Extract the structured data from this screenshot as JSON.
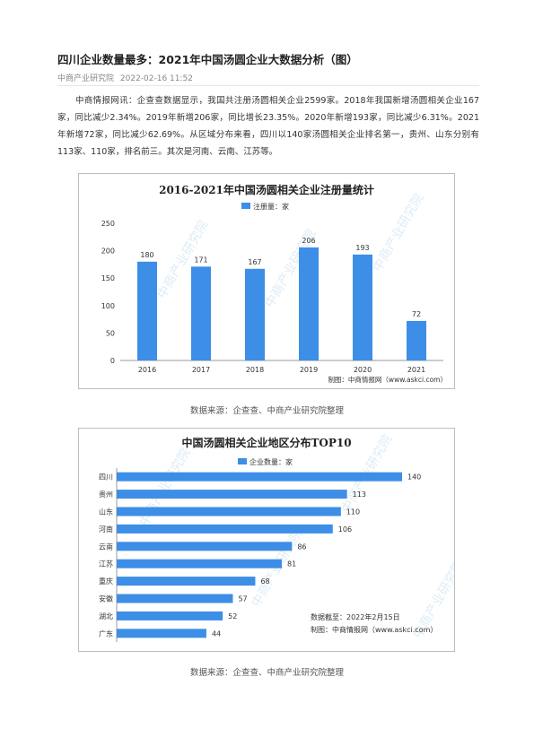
{
  "article": {
    "title": "四川企业数量最多：2021年中国汤圆企业大数据分析（图）",
    "source": "中商产业研究院",
    "date": "2022-02-16 11:52",
    "paragraph": "中商情报网讯：企查查数据显示，我国共注册汤圆相关企业2599家。2018年我国新增汤圆相关企业167家，同比减少2.34%。2019年新增206家，同比增长23.35%。2020年新增193家，同比减少6.31%。2021年新增72家，同比减少62.69%。从区域分布来看，四川以140家汤圆相关企业排名第一，贵州、山东分别有113家、110家，排名前三。其次是河南、云南、江苏等。"
  },
  "chart_data": [
    {
      "type": "bar",
      "title": "2016-2021年中国汤圆相关企业注册量统计",
      "legend": "注册量：家",
      "categories": [
        "2016",
        "2017",
        "2018",
        "2019",
        "2020",
        "2021"
      ],
      "series": [
        {
          "name": "注册量：家",
          "values": [
            180,
            171,
            167,
            206,
            193,
            72
          ]
        }
      ],
      "yticks": [
        "0",
        "50",
        "100",
        "150",
        "200",
        "250"
      ],
      "ylim": [
        0,
        250
      ],
      "credit": "制图：中商情报网（www.askci.com）",
      "watermark": "中商产业研究院",
      "color": "#3d8ee6"
    },
    {
      "type": "bar",
      "orientation": "horizontal",
      "title": "中国汤圆相关企业地区分布TOP10",
      "legend": "企业数量：家",
      "categories": [
        "四川",
        "贵州",
        "山东",
        "河南",
        "云南",
        "江苏",
        "重庆",
        "安徽",
        "湖北",
        "广东"
      ],
      "series": [
        {
          "name": "企业数量：家",
          "values": [
            140,
            113,
            110,
            106,
            86,
            81,
            68,
            57,
            52,
            44
          ]
        }
      ],
      "xlim": [
        0,
        140
      ],
      "date_note": "数据截至：2022年2月15日",
      "credit": "制图：中商情报网（www.askci.com）",
      "watermark": "中商产业研究院",
      "color": "#3d8ee6"
    }
  ],
  "captions": [
    "数据来源：企查查、中商产业研究院整理",
    "数据来源：企查查、中商产业研究院整理"
  ]
}
